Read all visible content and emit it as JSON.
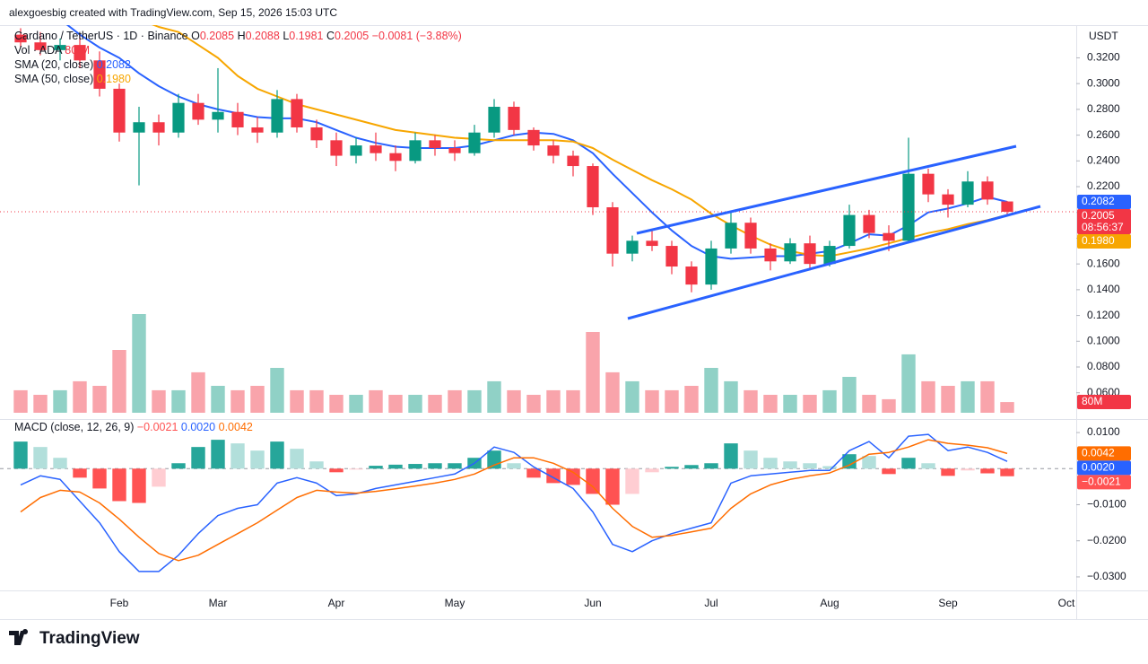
{
  "chart_data": {
    "type": "candlestick",
    "credit": "alexgoesbig created with TradingView.com, Sep 15, 2026 15:03 UTC",
    "title": "Cardano / TetherUS · 1D · Binance",
    "logo": "TradingView",
    "currency": "USDT",
    "countdown": "08:56:37",
    "ohlc_prefixes": [
      "O",
      "H",
      "L",
      "C"
    ],
    "change": {
      "value": -0.0081,
      "label": "−0.0081"
    },
    "change_pct": {
      "value": -3.88,
      "label": "(−3.88%)"
    },
    "up_color": "#089981",
    "down_color": "#f23645",
    "categories": [
      null,
      null,
      null,
      null,
      null,
      "Feb",
      null,
      null,
      null,
      null,
      "Mar",
      null,
      null,
      null,
      null,
      null,
      "Apr",
      null,
      null,
      null,
      null,
      null,
      "May",
      null,
      null,
      null,
      null,
      null,
      null,
      "Jun",
      null,
      null,
      null,
      null,
      null,
      "Jul",
      null,
      null,
      null,
      null,
      null,
      "Aug",
      null,
      null,
      null,
      null,
      null,
      "Sep",
      null,
      null,
      null,
      null,
      null,
      "Oct"
    ],
    "open": [
      0.338,
      0.332,
      0.326,
      0.33,
      0.318,
      0.296,
      0.262,
      0.27,
      0.262,
      0.285,
      0.272,
      0.278,
      0.266,
      0.262,
      0.288,
      0.266,
      0.256,
      0.244,
      0.252,
      0.246,
      0.24,
      0.256,
      0.25,
      0.246,
      0.262,
      0.282,
      0.264,
      0.252,
      0.244,
      0.236,
      0.204,
      0.168,
      0.178,
      0.174,
      0.158,
      0.144,
      0.172,
      0.192,
      0.172,
      0.162,
      0.176,
      0.16,
      0.174,
      0.198,
      0.184,
      0.178,
      0.23,
      0.214,
      0.206,
      0.224,
      0.2085,
      null,
      null,
      null
    ],
    "high": [
      0.343,
      0.34,
      0.335,
      0.338,
      0.325,
      0.3,
      0.282,
      0.276,
      0.292,
      0.292,
      0.312,
      0.285,
      0.274,
      0.295,
      0.292,
      0.272,
      0.262,
      0.258,
      0.262,
      0.252,
      0.262,
      0.26,
      0.256,
      0.268,
      0.288,
      0.286,
      0.266,
      0.256,
      0.248,
      0.238,
      0.208,
      0.182,
      0.186,
      0.178,
      0.162,
      0.178,
      0.2,
      0.196,
      0.176,
      0.18,
      0.182,
      0.178,
      0.206,
      0.202,
      0.19,
      0.258,
      0.234,
      0.218,
      0.232,
      0.228,
      0.2088,
      null,
      null,
      null
    ],
    "low": [
      0.328,
      0.322,
      0.318,
      0.312,
      0.29,
      0.255,
      0.221,
      0.252,
      0.258,
      0.268,
      0.262,
      0.26,
      0.254,
      0.258,
      0.262,
      0.25,
      0.236,
      0.238,
      0.24,
      0.232,
      0.238,
      0.244,
      0.24,
      0.244,
      0.258,
      0.26,
      0.248,
      0.238,
      0.228,
      0.198,
      0.158,
      0.162,
      0.17,
      0.152,
      0.138,
      0.14,
      0.168,
      0.168,
      0.155,
      0.16,
      0.155,
      0.158,
      0.172,
      0.18,
      0.17,
      0.176,
      0.208,
      0.196,
      0.204,
      0.206,
      0.1981,
      null,
      null,
      null
    ],
    "close": [
      0.332,
      0.326,
      0.33,
      0.318,
      0.296,
      0.262,
      0.27,
      0.262,
      0.285,
      0.272,
      0.278,
      0.266,
      0.262,
      0.288,
      0.266,
      0.256,
      0.244,
      0.252,
      0.246,
      0.24,
      0.256,
      0.25,
      0.246,
      0.262,
      0.282,
      0.264,
      0.252,
      0.244,
      0.236,
      0.204,
      0.168,
      0.178,
      0.174,
      0.158,
      0.144,
      0.172,
      0.192,
      0.172,
      0.162,
      0.176,
      0.16,
      0.174,
      0.198,
      0.184,
      0.178,
      0.23,
      0.214,
      0.206,
      0.224,
      0.21,
      0.2005,
      null,
      null,
      null
    ],
    "ylim": [
      0.041,
      0.344
    ],
    "yticks": [
      {
        "value": 0.32,
        "label": "0.3200"
      },
      {
        "value": 0.3,
        "label": "0.3000"
      },
      {
        "value": 0.28,
        "label": "0.2800"
      },
      {
        "value": 0.26,
        "label": "0.2600"
      },
      {
        "value": 0.24,
        "label": "0.2400"
      },
      {
        "value": 0.22,
        "label": "0.2200"
      },
      {
        "value": 0.2,
        "label": "0.2000"
      },
      {
        "value": 0.18,
        "label": "0.1800"
      },
      {
        "value": 0.16,
        "label": "0.1600"
      },
      {
        "value": 0.14,
        "label": "0.1400"
      },
      {
        "value": 0.12,
        "label": "0.1200"
      },
      {
        "value": 0.1,
        "label": "0.1000"
      },
      {
        "value": 0.08,
        "label": "0.0800"
      },
      {
        "value": 0.06,
        "label": "0.0600"
      }
    ],
    "volume": {
      "name": "Vol · ADA",
      "value_label": "80 M",
      "tag_label": "80M",
      "values": [
        168,
        134,
        168,
        235,
        201,
        469,
        737,
        168,
        168,
        302,
        201,
        168,
        201,
        335,
        168,
        168,
        134,
        134,
        168,
        134,
        134,
        134,
        168,
        168,
        235,
        168,
        134,
        168,
        168,
        603,
        302,
        235,
        168,
        168,
        201,
        335,
        235,
        168,
        134,
        134,
        134,
        168,
        268,
        134,
        101,
        436,
        235,
        201,
        235,
        235,
        80,
        null,
        null,
        null
      ]
    },
    "overlays": [
      {
        "name": "SMA (20, close)",
        "color": "#2962ff",
        "last_label": "0.2082",
        "values": [
          0.37,
          0.36,
          0.35,
          0.338,
          0.328,
          0.32,
          0.308,
          0.298,
          0.29,
          0.284,
          0.28,
          0.277,
          0.274,
          0.273,
          0.273,
          0.27,
          0.264,
          0.258,
          0.254,
          0.251,
          0.25,
          0.25,
          0.25,
          0.252,
          0.256,
          0.26,
          0.262,
          0.261,
          0.256,
          0.246,
          0.23,
          0.215,
          0.2,
          0.186,
          0.174,
          0.166,
          0.164,
          0.165,
          0.166,
          0.166,
          0.168,
          0.17,
          0.176,
          0.183,
          0.182,
          0.19,
          0.2,
          0.203,
          0.207,
          0.212,
          0.2082,
          null,
          null,
          null
        ]
      },
      {
        "name": "SMA (50, close)",
        "color": "#f7a600",
        "last_label": "0.1980",
        "values": [
          0.38,
          0.376,
          0.372,
          0.368,
          0.362,
          0.356,
          0.35,
          0.344,
          0.34,
          0.33,
          0.32,
          0.306,
          0.296,
          0.29,
          0.284,
          0.28,
          0.276,
          0.272,
          0.268,
          0.264,
          0.262,
          0.26,
          0.258,
          0.257,
          0.256,
          0.256,
          0.256,
          0.256,
          0.255,
          0.25,
          0.241,
          0.233,
          0.225,
          0.218,
          0.21,
          0.199,
          0.19,
          0.182,
          0.175,
          0.17,
          0.167,
          0.166,
          0.169,
          0.172,
          0.176,
          0.18,
          0.184,
          0.187,
          0.191,
          0.194,
          0.198,
          null,
          null,
          null
        ]
      }
    ],
    "macd": {
      "title": "MACD (close, 12, 26, 9)",
      "ylim": [
        -0.033,
        0.013
      ],
      "yticks": [
        {
          "value": 0.01,
          "label": "0.0100"
        },
        {
          "value": -0.01,
          "label": "−0.0100"
        },
        {
          "value": -0.02,
          "label": "−0.0200"
        },
        {
          "value": -0.03,
          "label": "−0.0300"
        }
      ],
      "hist_colors": [
        "#26a69a",
        "#b2dfdb",
        "#ffcdd2",
        "#ff5252"
      ],
      "hist_label": "−0.0021",
      "hist": [
        0.0075,
        0.006,
        0.003,
        -0.0025,
        -0.0055,
        -0.009,
        -0.0095,
        -0.005,
        0.0015,
        0.006,
        0.008,
        0.007,
        0.005,
        0.0075,
        0.0055,
        0.002,
        -0.001,
        -0.0002,
        0.0008,
        0.0011,
        0.0013,
        0.0015,
        0.0015,
        0.003,
        0.005,
        0.0015,
        -0.0025,
        -0.004,
        -0.0045,
        -0.007,
        -0.01,
        -0.007,
        -0.001,
        0.0005,
        0.001,
        0.0015,
        0.007,
        0.005,
        0.003,
        0.002,
        0.0015,
        0.0007,
        0.004,
        0.0035,
        -0.0015,
        0.003,
        0.0015,
        -0.002,
        -0.0005,
        -0.0013,
        -0.0021,
        null,
        null,
        null
      ],
      "line_color": "#2962ff",
      "line_label": "0.0020",
      "line": [
        -0.0045,
        -0.002,
        -0.003,
        -0.009,
        -0.015,
        -0.023,
        -0.0285,
        -0.0285,
        -0.024,
        -0.018,
        -0.013,
        -0.011,
        -0.01,
        -0.004,
        -0.0025,
        -0.004,
        -0.0075,
        -0.007,
        -0.0055,
        -0.0045,
        -0.0035,
        -0.0025,
        -0.0015,
        0.0015,
        0.006,
        0.0045,
        0.0005,
        -0.0025,
        -0.0055,
        -0.012,
        -0.021,
        -0.023,
        -0.02,
        -0.018,
        -0.0165,
        -0.015,
        -0.004,
        -0.002,
        -0.0015,
        -0.001,
        -0.0005,
        -0.0005,
        0.005,
        0.0075,
        0.003,
        0.009,
        0.0095,
        0.005,
        0.006,
        0.0045,
        0.002,
        null,
        null,
        null
      ],
      "signal_color": "#ff6d00",
      "signal": [
        -0.012,
        -0.008,
        -0.006,
        -0.0065,
        -0.0095,
        -0.014,
        -0.019,
        -0.0235,
        -0.0255,
        -0.024,
        -0.021,
        -0.018,
        -0.015,
        -0.0115,
        -0.008,
        -0.006,
        -0.0065,
        -0.0068,
        -0.0063,
        -0.0056,
        -0.0048,
        -0.004,
        -0.003,
        -0.0015,
        0.001,
        0.003,
        0.003,
        0.0015,
        -0.001,
        -0.005,
        -0.011,
        -0.016,
        -0.019,
        -0.0185,
        -0.0175,
        -0.0165,
        -0.011,
        -0.007,
        -0.0045,
        -0.003,
        -0.002,
        -0.0012,
        0.001,
        0.004,
        0.0045,
        0.006,
        0.008,
        0.007,
        0.0065,
        0.0058,
        0.0042,
        null,
        null,
        null
      ]
    }
  }
}
